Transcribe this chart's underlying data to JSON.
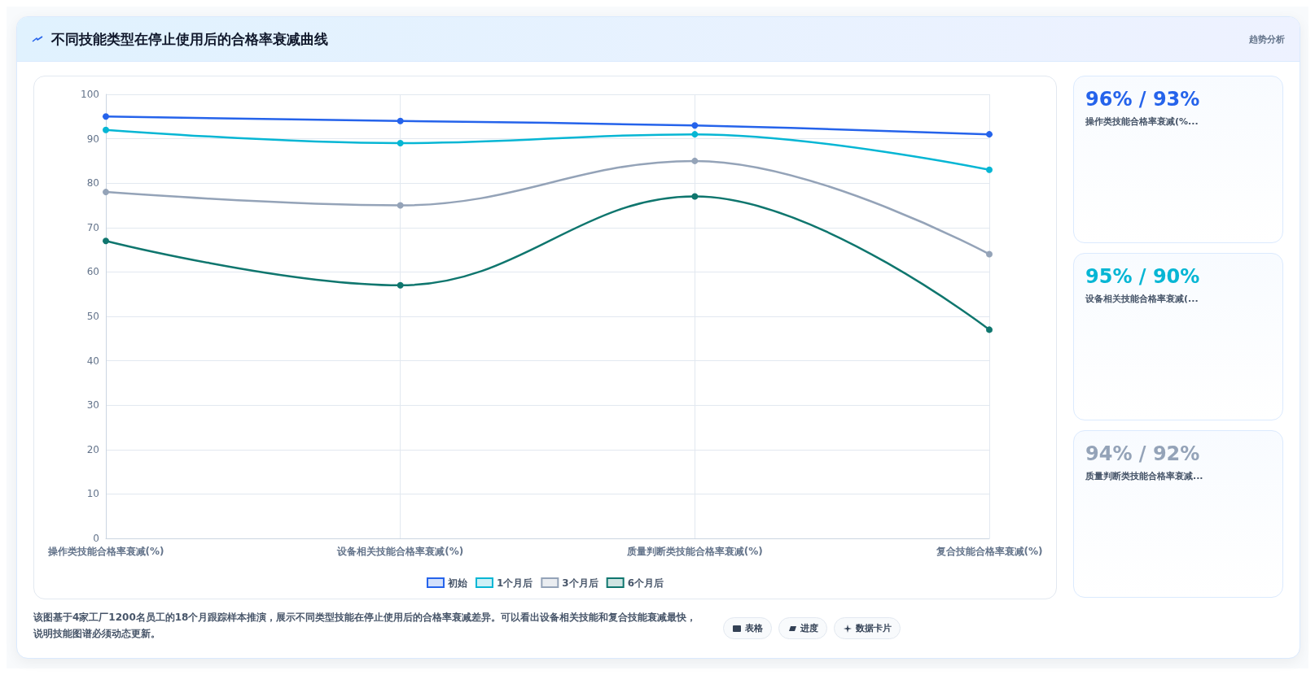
{
  "chart_data": [
    {
      "type": "line",
      "title": "不同技能类型在停止使用后的合格率衰减曲线",
      "categories": [
        "操作类技能合格率衰减(%)",
        "设备相关技能合格率衰减(%)",
        "质量判断类技能合格率衰减(%)",
        "复合技能合格率衰减(%)"
      ],
      "series": [
        {
          "name": "初始",
          "color": "#2563eb",
          "values": [
            95,
            94,
            93,
            91
          ]
        },
        {
          "name": "1个月后",
          "color": "#06b6d4",
          "values": [
            92,
            89,
            91,
            83
          ]
        },
        {
          "name": "3个月后",
          "color": "#94a3b8",
          "values": [
            78,
            75,
            85,
            64
          ]
        },
        {
          "name": "6个月后",
          "color": "#0f766e",
          "values": [
            67,
            57,
            77,
            47
          ]
        }
      ],
      "ylim": [
        0,
        100
      ],
      "yticks": [
        0,
        10,
        20,
        30,
        40,
        50,
        60,
        70,
        80,
        90,
        100
      ],
      "grid": true,
      "legend": "bottom",
      "marker": "circle",
      "line_style": "solid",
      "annotations": [
        "趋势分析",
        "该图基于4家工厂1200名员工的18个月跟踪样本推演，展示不同类型技能在停止使用后的合格率衰减差异。可以看出设备相关技能和复合技能衰减最快，说明技能图谱必须动态更新。",
        "表格",
        "进度",
        "数据卡片"
      ]
    },
    {
      "type": "other",
      "title": "96% / 93%",
      "subtitle": "操作类技能合格率衰减(%..."
    },
    {
      "type": "other",
      "title": "95% / 90%",
      "subtitle": "设备相关技能合格率衰减(..."
    },
    {
      "type": "other",
      "title": "94% / 92%",
      "subtitle": "质量判断类技能合格率衰减..."
    }
  ]
}
